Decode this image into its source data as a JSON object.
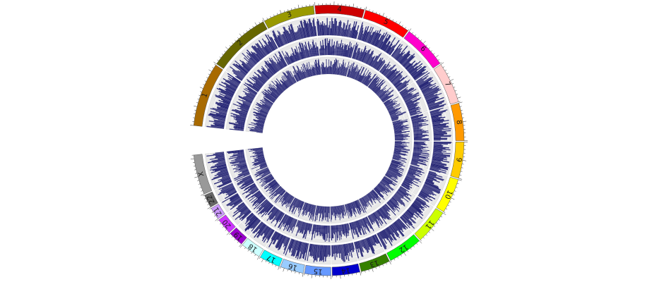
{
  "diagram": {
    "chromosomes": [
      {
        "label": "1",
        "color": "#a86a00",
        "size": 249
      },
      {
        "label": "2",
        "color": "#666600",
        "size": 243
      },
      {
        "label": "3",
        "color": "#999900",
        "size": 198
      },
      {
        "label": "4",
        "color": "#cc0000",
        "size": 191
      },
      {
        "label": "5",
        "color": "#ff0000",
        "size": 181
      },
      {
        "label": "6",
        "color": "#ff00cc",
        "size": 171
      },
      {
        "label": "7",
        "color": "#ffcccc",
        "size": 159
      },
      {
        "label": "8",
        "color": "#ff9900",
        "size": 146
      },
      {
        "label": "9",
        "color": "#ffcc00",
        "size": 141
      },
      {
        "label": "10",
        "color": "#ffff00",
        "size": 136
      },
      {
        "label": "11",
        "color": "#ccff00",
        "size": 135
      },
      {
        "label": "12",
        "color": "#00ff00",
        "size": 134
      },
      {
        "label": "13",
        "color": "#358000",
        "size": 115
      },
      {
        "label": "14",
        "color": "#0000cc",
        "size": 107
      },
      {
        "label": "15",
        "color": "#6699ff",
        "size": 102
      },
      {
        "label": "16",
        "color": "#99ccff",
        "size": 90
      },
      {
        "label": "17",
        "color": "#00ffff",
        "size": 81
      },
      {
        "label": "18",
        "color": "#ccffff",
        "size": 78
      },
      {
        "label": "19",
        "color": "#9900cc",
        "size": 59
      },
      {
        "label": "20",
        "color": "#cc33ff",
        "size": 63
      },
      {
        "label": "21",
        "color": "#cc99ff",
        "size": 48
      },
      {
        "label": "22",
        "color": "#666666",
        "size": 51
      },
      {
        "label": "X",
        "color": "#999999",
        "size": 155
      }
    ],
    "track_color": "#1a1a6e",
    "track_background": "#e8e8e8"
  }
}
